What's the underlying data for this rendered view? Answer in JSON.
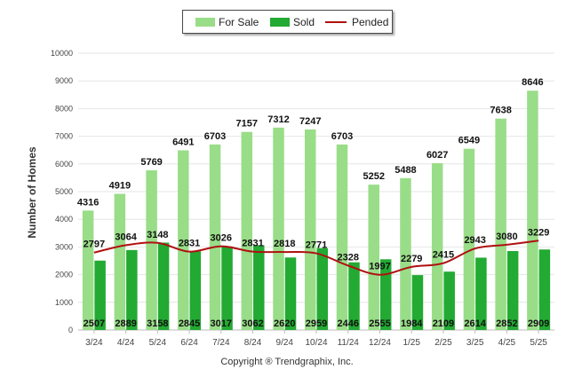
{
  "chart_data": {
    "type": "bar",
    "categories": [
      "3/24",
      "4/24",
      "5/24",
      "6/24",
      "7/24",
      "8/24",
      "9/24",
      "10/24",
      "11/24",
      "12/24",
      "1/25",
      "2/25",
      "3/25",
      "4/25",
      "5/25"
    ],
    "series": [
      {
        "name": "For Sale",
        "type": "bar",
        "color": "#99dd88",
        "values": [
          4316,
          4919,
          5769,
          6491,
          6703,
          7157,
          7312,
          7247,
          6703,
          5252,
          5488,
          6027,
          6549,
          7638,
          8646
        ]
      },
      {
        "name": "Sold",
        "type": "bar",
        "color": "#22aa33",
        "values": [
          2507,
          2889,
          3158,
          2845,
          3017,
          3062,
          2620,
          2959,
          2446,
          2555,
          1984,
          2109,
          2614,
          2852,
          2909
        ]
      },
      {
        "name": "Pended",
        "type": "line",
        "color": "#b01010",
        "values": [
          2797,
          3064,
          3148,
          2831,
          3026,
          2831,
          2818,
          2771,
          2328,
          1997,
          2279,
          2415,
          2943,
          3080,
          3229
        ]
      }
    ],
    "ylabel": "Number of Homes",
    "xlabel": "",
    "ylim": [
      0,
      10000
    ],
    "yticks": [
      0,
      1000,
      2000,
      3000,
      4000,
      5000,
      6000,
      7000,
      8000,
      9000,
      10000
    ],
    "grid": true,
    "legend_position": "top-center"
  },
  "footer": {
    "copyright": "Copyright ® Trendgraphix, Inc."
  }
}
